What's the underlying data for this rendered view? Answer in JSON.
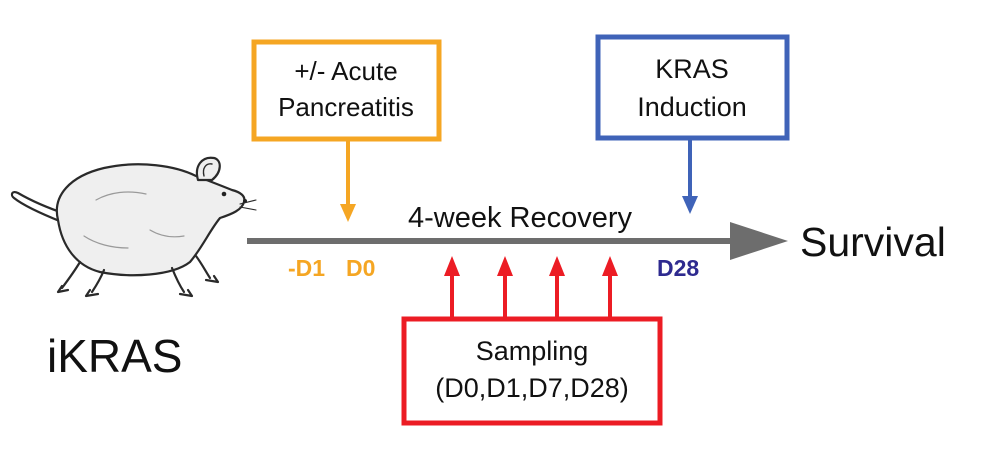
{
  "subject": {
    "label": "iKRAS",
    "icon": "mouse-icon"
  },
  "timeline": {
    "recovery_label": "4-week Recovery",
    "day_labels": {
      "minus_d1": "-D1",
      "d0": "D0",
      "d28": "D28"
    },
    "outcome_label": "Survival"
  },
  "boxes": {
    "pancreatitis": {
      "line1": "+/- Acute",
      "line2": "Pancreatitis"
    },
    "induction": {
      "line1": "KRAS",
      "line2": "Induction"
    },
    "sampling": {
      "line1": "Sampling",
      "line2": "(D0,D1,D7,D28)"
    }
  },
  "colors": {
    "pancreatitis": "#f5a623",
    "induction": "#3f63b8",
    "sampling": "#ec1c24",
    "day_orange": "#f5a623",
    "day_blue": "#2e2a8f",
    "timeline": "#6d6d6d",
    "text": "#111111"
  }
}
